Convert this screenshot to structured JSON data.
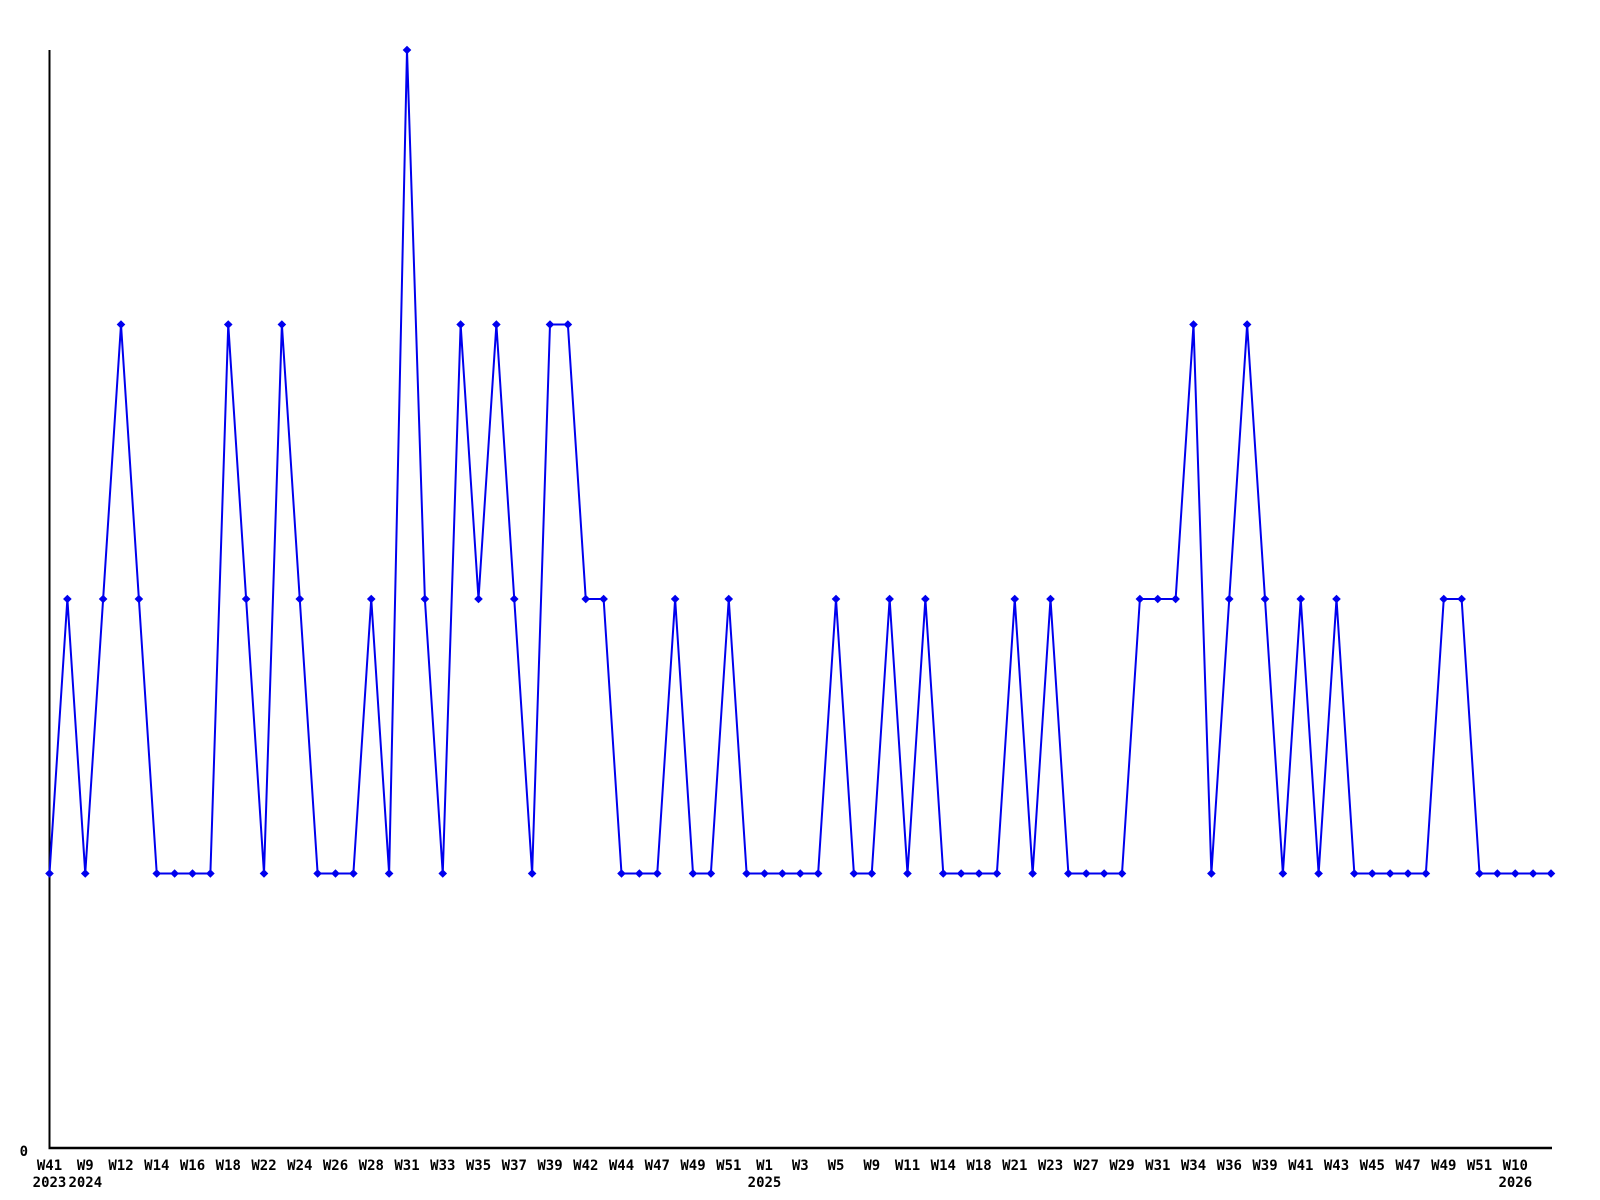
{
  "figure": {
    "background": "#ffffff",
    "title": ""
  },
  "chart_data": {
    "type": "line",
    "title": "",
    "xlabel": "",
    "ylabel": "",
    "grid": false,
    "legend": null,
    "marker": "diamond",
    "series_color": "#0000ee",
    "axis_color": "#000000",
    "label_color": "#000000",
    "ylim": [
      0,
      4
    ],
    "y_tick_labels": [
      {
        "value": 0,
        "label": "0"
      }
    ],
    "x_unit": "ISO week",
    "n_points": 85,
    "values": [
      1,
      2,
      1,
      2,
      3,
      2,
      1,
      1,
      1,
      1,
      3,
      2,
      1,
      3,
      2,
      1,
      1,
      1,
      2,
      1,
      4,
      2,
      1,
      3,
      2,
      3,
      2,
      1,
      3,
      3,
      2,
      2,
      1,
      1,
      1,
      2,
      1,
      1,
      2,
      1,
      1,
      1,
      1,
      1,
      2,
      1,
      1,
      2,
      1,
      2,
      1,
      1,
      1,
      1,
      2,
      1,
      2,
      1,
      1,
      1,
      1,
      2,
      2,
      2,
      3,
      1,
      2,
      3,
      2,
      1,
      2,
      1,
      2,
      1,
      1,
      1,
      1,
      1,
      2,
      2,
      1,
      1,
      1,
      1,
      1
    ],
    "x_ticks": [
      {
        "index": 0,
        "label": "W41"
      },
      {
        "index": 2,
        "label": "W9"
      },
      {
        "index": 4,
        "label": "W12"
      },
      {
        "index": 6,
        "label": "W14"
      },
      {
        "index": 8,
        "label": "W16"
      },
      {
        "index": 10,
        "label": "W18"
      },
      {
        "index": 12,
        "label": "W22"
      },
      {
        "index": 14,
        "label": "W24"
      },
      {
        "index": 16,
        "label": "W26"
      },
      {
        "index": 18,
        "label": "W28"
      },
      {
        "index": 20,
        "label": "W31"
      },
      {
        "index": 22,
        "label": "W33"
      },
      {
        "index": 24,
        "label": "W35"
      },
      {
        "index": 26,
        "label": "W37"
      },
      {
        "index": 28,
        "label": "W39"
      },
      {
        "index": 30,
        "label": "W42"
      },
      {
        "index": 32,
        "label": "W44"
      },
      {
        "index": 34,
        "label": "W47"
      },
      {
        "index": 36,
        "label": "W49"
      },
      {
        "index": 38,
        "label": "W51"
      },
      {
        "index": 40,
        "label": "W1"
      },
      {
        "index": 42,
        "label": "W3"
      },
      {
        "index": 44,
        "label": "W5"
      },
      {
        "index": 46,
        "label": "W9"
      },
      {
        "index": 48,
        "label": "W11"
      },
      {
        "index": 50,
        "label": "W14"
      },
      {
        "index": 52,
        "label": "W18"
      },
      {
        "index": 54,
        "label": "W21"
      },
      {
        "index": 56,
        "label": "W23"
      },
      {
        "index": 58,
        "label": "W27"
      },
      {
        "index": 60,
        "label": "W29"
      },
      {
        "index": 62,
        "label": "W31"
      },
      {
        "index": 64,
        "label": "W34"
      },
      {
        "index": 66,
        "label": "W36"
      },
      {
        "index": 68,
        "label": "W39"
      },
      {
        "index": 70,
        "label": "W41"
      },
      {
        "index": 72,
        "label": "W43"
      },
      {
        "index": 74,
        "label": "W45"
      },
      {
        "index": 76,
        "label": "W47"
      },
      {
        "index": 78,
        "label": "W49"
      },
      {
        "index": 80,
        "label": "W51"
      },
      {
        "index": 82,
        "label": "W10"
      }
    ],
    "year_labels": [
      {
        "index": 0,
        "label": "2023"
      },
      {
        "index": 2,
        "label": "2024"
      },
      {
        "index": 40,
        "label": "2025"
      },
      {
        "index": 82,
        "label": "2026"
      }
    ]
  }
}
